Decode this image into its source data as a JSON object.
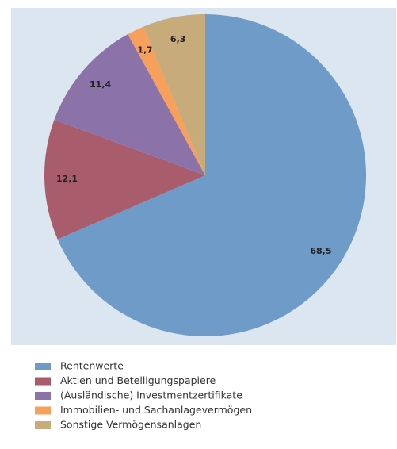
{
  "chart_data": {
    "type": "pie",
    "categories": [
      "Rentenwerte",
      "Aktien und Beteiligungspapiere",
      "(Ausländische) Investmentzertifikate",
      "Immobilien- und Sachanlagevermögen",
      "Sonstige Vermögensanlagen"
    ],
    "values": [
      68.5,
      12.1,
      11.4,
      1.7,
      6.3
    ],
    "value_labels": [
      "68,5",
      "12,1",
      "11,4",
      "1,7",
      "6,3"
    ],
    "colors": [
      "#6f9bc8",
      "#a95c6c",
      "#8b73a9",
      "#f6a05c",
      "#c8ab7b"
    ]
  }
}
